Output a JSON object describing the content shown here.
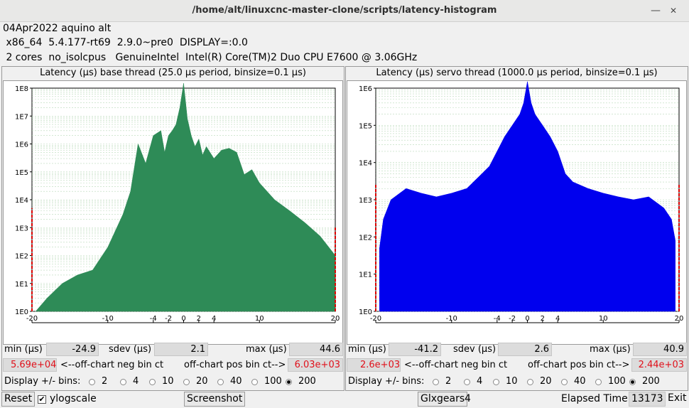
{
  "window": {
    "title": "/home/alt/linuxcnc-master-clone/scripts/latency-histogram",
    "minimize_icon": "window-minimize-icon",
    "close_icon": "window-close-icon"
  },
  "info": {
    "line1": "04Apr2022 aquino alt",
    "line2": " x86_64  5.4.177-rt69  2.9.0~pre0  DISPLAY=:0.0",
    "line3": " 2 cores  no_isolcpus   GenuineIntel  Intel(R) Core(TM)2 Duo CPU E7600 @ 3.06GHz"
  },
  "labels": {
    "min": "min (µs)",
    "sdev": "sdev (µs)",
    "max": "max (µs)",
    "neg_ct": "<--off-chart neg bin ct",
    "pos_ct": "off-chart pos bin ct-->",
    "display_bins": "Display +/- bins:",
    "bin_options": [
      "2",
      "4",
      "10",
      "20",
      "40",
      "100",
      "200"
    ]
  },
  "base": {
    "title": "Latency (µs) base thread (25.0 µs period, binsize=0.1 µs)",
    "min": "-24.9",
    "sdev": "2.1",
    "max": "44.6",
    "neg_ct": "5.69e+04",
    "pos_ct": "6.03e+03",
    "selected_bins": "200"
  },
  "servo": {
    "title": "Latency (µs) servo thread (1000.0 µs period, binsize=0.1 µs)",
    "min": "-41.2",
    "sdev": "2.6",
    "max": "40.9",
    "neg_ct": "2.6e+03",
    "pos_ct": "2.44e+03",
    "selected_bins": "200"
  },
  "bottom": {
    "reset": "Reset",
    "ylogscale": "ylogscale",
    "ylogscale_checked": true,
    "screenshot": "Screenshot",
    "glxgears": "Glxgears",
    "glxgears_count": "4",
    "elapsed_label": "Elapsed Time:",
    "elapsed_value": "13173",
    "exit": "Exit"
  },
  "chart_data": [
    {
      "type": "area",
      "title": "Latency (µs) base thread (25.0 µs period, binsize=0.1 µs)",
      "xlabel": "",
      "ylabel": "",
      "yscale": "log",
      "color": "#2e8b57",
      "xlim": [
        -20,
        20
      ],
      "ylim": [
        1,
        100000000
      ],
      "x_ticks": [
        "-20",
        "-10",
        "-4",
        "-2",
        "0",
        "2",
        "4",
        "10",
        "20"
      ],
      "y_ticks": [
        "1E0",
        "1E1",
        "1E2",
        "1E3",
        "1E4",
        "1E5",
        "1E6",
        "1E7",
        "1E8"
      ],
      "x": [
        -19.5,
        -18,
        -16,
        -14,
        -12,
        -10,
        -8,
        -7,
        -6,
        -5,
        -4,
        -3,
        -2.5,
        -2,
        -1.5,
        -1,
        -0.5,
        0,
        0.5,
        1,
        1.5,
        2,
        2.5,
        3,
        4,
        5,
        6,
        7,
        8,
        9,
        10,
        12,
        14,
        16,
        18,
        19.5,
        20
      ],
      "values": [
        1,
        3,
        10,
        20,
        30,
        200,
        3000,
        20000,
        1000000,
        200000,
        2000000,
        3000000,
        500000,
        2000000,
        3000000,
        5000000,
        20000000,
        150000000,
        8000000,
        2000000,
        800000,
        1500000,
        400000,
        800000,
        300000,
        600000,
        700000,
        500000,
        80000,
        120000,
        40000,
        10000,
        4000,
        1500,
        500,
        150,
        100
      ],
      "overflow_bars": [
        {
          "x": -20,
          "value": 5000
        },
        {
          "x": 20,
          "value": 1000
        }
      ]
    },
    {
      "type": "area",
      "title": "Latency (µs) servo thread (1000.0 µs period, binsize=0.1 µs)",
      "xlabel": "",
      "ylabel": "",
      "yscale": "log",
      "color": "#0000ee",
      "xlim": [
        -20,
        20
      ],
      "ylim": [
        1,
        1000000
      ],
      "x_ticks": [
        "-20",
        "-10",
        "-4",
        "-2",
        "0",
        "2",
        "4",
        "10",
        "20"
      ],
      "y_ticks": [
        "1E0",
        "1E1",
        "1E2",
        "1E3",
        "1E4",
        "1E5",
        "1E6"
      ],
      "x": [
        -19.5,
        -19,
        -18,
        -16,
        -14,
        -12,
        -10,
        -8,
        -6,
        -5,
        -4,
        -3,
        -2,
        -1,
        -0.5,
        0,
        0.5,
        1,
        2,
        3,
        4,
        5,
        6,
        8,
        10,
        12,
        14,
        16,
        18,
        19,
        19.5
      ],
      "values": [
        50,
        300,
        1000,
        2000,
        1500,
        1200,
        1500,
        2000,
        5000,
        8000,
        20000,
        50000,
        100000,
        200000,
        400000,
        1500000,
        400000,
        200000,
        100000,
        50000,
        20000,
        5000,
        3000,
        2000,
        1500,
        1200,
        1000,
        1200,
        600,
        300,
        80
      ],
      "overflow_bars": [
        {
          "x": -20,
          "value": 2500
        },
        {
          "x": 20,
          "value": 2500
        }
      ]
    }
  ]
}
